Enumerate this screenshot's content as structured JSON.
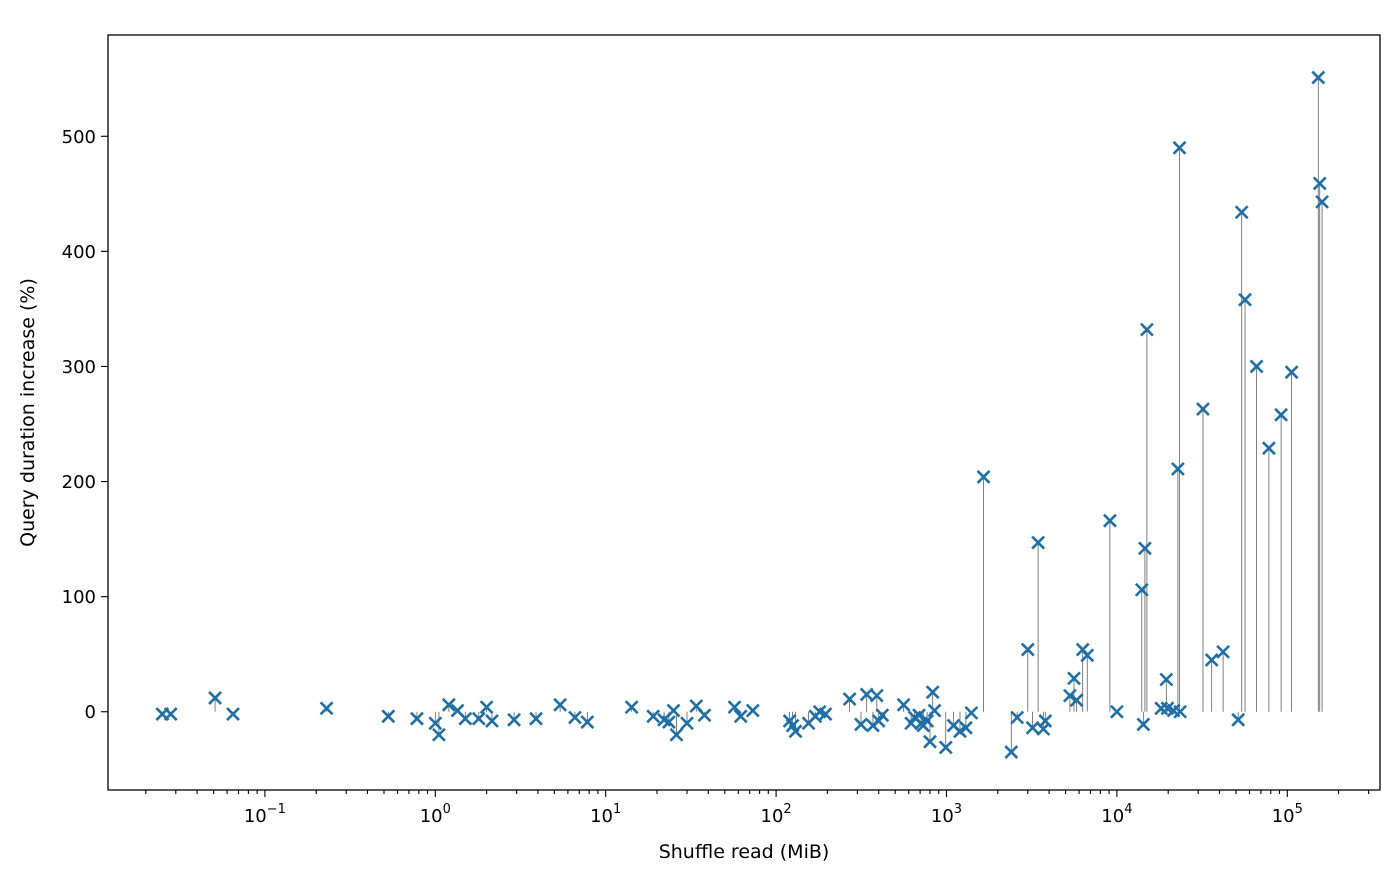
{
  "chart_data": {
    "type": "scatter",
    "title": "",
    "xlabel": "Shuffle read (MiB)",
    "ylabel": "Query duration increase (%)",
    "x_scale": "log",
    "xlim": [
      0.012,
      350000
    ],
    "ylim": [
      -68,
      588
    ],
    "x_ticks": [
      {
        "value": 0.1,
        "base": "10",
        "exp": "−1"
      },
      {
        "value": 1,
        "base": "10",
        "exp": "0"
      },
      {
        "value": 10,
        "base": "10",
        "exp": "1"
      },
      {
        "value": 100,
        "base": "10",
        "exp": "2"
      },
      {
        "value": 1000,
        "base": "10",
        "exp": "3"
      },
      {
        "value": 10000,
        "base": "10",
        "exp": "4"
      },
      {
        "value": 100000,
        "base": "10",
        "exp": "5"
      }
    ],
    "y_ticks": [
      {
        "value": 0,
        "label": "0"
      },
      {
        "value": 100,
        "label": "100"
      },
      {
        "value": 200,
        "label": "200"
      },
      {
        "value": 300,
        "label": "300"
      },
      {
        "value": 400,
        "label": "400"
      },
      {
        "value": 500,
        "label": "500"
      }
    ],
    "marker": "x",
    "marker_color": "#1f6fa6",
    "stem_color": "#606060",
    "grid": false,
    "legend": "none",
    "points": [
      [
        0.025,
        -2
      ],
      [
        0.028,
        -2
      ],
      [
        0.051,
        12
      ],
      [
        0.065,
        -2
      ],
      [
        0.23,
        3
      ],
      [
        0.53,
        -4
      ],
      [
        0.78,
        -6
      ],
      [
        1.0,
        -10
      ],
      [
        1.05,
        -20
      ],
      [
        1.2,
        6
      ],
      [
        1.35,
        1
      ],
      [
        1.5,
        -6
      ],
      [
        1.8,
        -6
      ],
      [
        2.0,
        4
      ],
      [
        2.15,
        -8
      ],
      [
        2.9,
        -7
      ],
      [
        3.9,
        -6
      ],
      [
        5.4,
        6
      ],
      [
        6.6,
        -5
      ],
      [
        7.8,
        -9
      ],
      [
        14.2,
        4
      ],
      [
        19,
        -4
      ],
      [
        22,
        -7
      ],
      [
        23.5,
        -9
      ],
      [
        25,
        1
      ],
      [
        26,
        -20
      ],
      [
        30,
        -10
      ],
      [
        34,
        5
      ],
      [
        38,
        -3
      ],
      [
        57,
        4
      ],
      [
        62,
        -4
      ],
      [
        73,
        1
      ],
      [
        120,
        -8
      ],
      [
        125,
        -12
      ],
      [
        130,
        -17
      ],
      [
        155,
        -10
      ],
      [
        170,
        -4
      ],
      [
        180,
        0
      ],
      [
        195,
        -2
      ],
      [
        270,
        11
      ],
      [
        315,
        -11
      ],
      [
        340,
        15
      ],
      [
        370,
        -12
      ],
      [
        390,
        14
      ],
      [
        400,
        -8
      ],
      [
        420,
        -3
      ],
      [
        560,
        6
      ],
      [
        620,
        -10
      ],
      [
        650,
        -5
      ],
      [
        690,
        -3
      ],
      [
        710,
        -10
      ],
      [
        730,
        -12
      ],
      [
        770,
        -8
      ],
      [
        800,
        -26
      ],
      [
        830,
        17
      ],
      [
        850,
        1
      ],
      [
        990,
        -31
      ],
      [
        1100,
        -12
      ],
      [
        1200,
        -17
      ],
      [
        1300,
        -14
      ],
      [
        1400,
        -1
      ],
      [
        1650,
        204
      ],
      [
        2400,
        -35
      ],
      [
        2600,
        -5
      ],
      [
        3000,
        54
      ],
      [
        3200,
        -14
      ],
      [
        3450,
        147
      ],
      [
        3700,
        -15
      ],
      [
        3800,
        -8
      ],
      [
        5300,
        14
      ],
      [
        5600,
        29
      ],
      [
        5800,
        10
      ],
      [
        6300,
        54
      ],
      [
        6700,
        49
      ],
      [
        9100,
        166
      ],
      [
        10000,
        0
      ],
      [
        14000,
        106
      ],
      [
        14300,
        -11
      ],
      [
        14600,
        142
      ],
      [
        15000,
        332
      ],
      [
        18200,
        3
      ],
      [
        19500,
        28
      ],
      [
        19800,
        3
      ],
      [
        21500,
        1
      ],
      [
        22800,
        211
      ],
      [
        23300,
        490
      ],
      [
        23500,
        0
      ],
      [
        32000,
        263
      ],
      [
        36000,
        45
      ],
      [
        42000,
        52
      ],
      [
        51500,
        -7
      ],
      [
        54000,
        434
      ],
      [
        56500,
        358
      ],
      [
        66000,
        300
      ],
      [
        78000,
        229
      ],
      [
        92000,
        258
      ],
      [
        106000,
        295
      ],
      [
        152000,
        551
      ],
      [
        155000,
        459
      ],
      [
        160000,
        443
      ]
    ]
  }
}
